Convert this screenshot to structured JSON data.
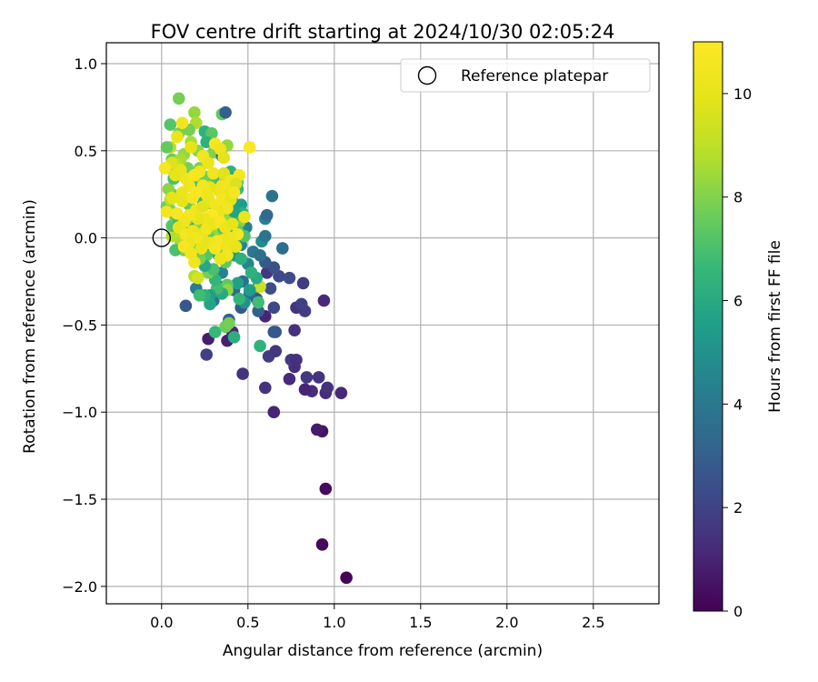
{
  "chart_data": {
    "type": "scatter",
    "title": "FOV centre drift starting at 2024/10/30 02:05:24",
    "xlabel": "Angular distance from reference (arcmin)",
    "ylabel": "Rotation from reference (arcmin)",
    "xlim": [
      -0.32,
      2.88
    ],
    "ylim": [
      -2.1,
      1.12
    ],
    "xticks": [
      0.0,
      0.5,
      1.0,
      1.5,
      2.0,
      2.5
    ],
    "xtick_labels": [
      "0.0",
      "0.5",
      "1.0",
      "1.5",
      "2.0",
      "2.5"
    ],
    "yticks": [
      -2.0,
      -1.5,
      -1.0,
      -0.5,
      0.0,
      0.5,
      1.0
    ],
    "ytick_labels": [
      "−2.0",
      "−1.5",
      "−1.0",
      "−0.5",
      "0.0",
      "0.5",
      "1.0"
    ],
    "grid": true,
    "legend": {
      "placement": "top-right",
      "entries": [
        "Reference platepar"
      ]
    },
    "reference_point": {
      "name": "Reference platepar",
      "x": 0.0,
      "y": 0.0,
      "marker": "open-circle"
    },
    "colorbar": {
      "label": "Hours from first FF file",
      "range": [
        0,
        11
      ],
      "ticks": [
        0,
        2,
        4,
        6,
        8,
        10
      ],
      "tick_labels": [
        "0",
        "2",
        "4",
        "6",
        "8",
        "10"
      ],
      "colormap": "viridis"
    },
    "points": [
      [
        1.07,
        -1.95,
        0.1
      ],
      [
        0.93,
        -1.76,
        0.2
      ],
      [
        0.95,
        -1.44,
        0.3
      ],
      [
        0.93,
        -1.11,
        0.5
      ],
      [
        0.9,
        -1.1,
        0.7
      ],
      [
        0.65,
        -1.0,
        1.0
      ],
      [
        1.04,
        -0.89,
        1.1
      ],
      [
        0.95,
        -0.89,
        1.2
      ],
      [
        0.87,
        -0.88,
        1.3
      ],
      [
        0.83,
        -0.87,
        1.0
      ],
      [
        0.96,
        -0.86,
        1.4
      ],
      [
        0.6,
        -0.86,
        1.5
      ],
      [
        0.77,
        -0.74,
        1.3
      ],
      [
        0.84,
        -0.8,
        1.6
      ],
      [
        0.91,
        -0.8,
        1.5
      ],
      [
        0.74,
        -0.81,
        1.2
      ],
      [
        0.75,
        -0.7,
        1.7
      ],
      [
        0.78,
        -0.7,
        1.4
      ],
      [
        0.62,
        -0.68,
        1.8
      ],
      [
        0.66,
        -0.65,
        1.6
      ],
      [
        0.47,
        -0.78,
        1.5
      ],
      [
        0.26,
        -0.67,
        1.9
      ],
      [
        0.27,
        -0.58,
        0.8
      ],
      [
        0.38,
        -0.59,
        0.9
      ],
      [
        0.41,
        -0.54,
        1.1
      ],
      [
        0.77,
        -0.53,
        1.4
      ],
      [
        0.65,
        -0.54,
        2.5
      ],
      [
        0.66,
        -0.54,
        2.7
      ],
      [
        0.6,
        -0.45,
        1.0
      ],
      [
        0.83,
        -0.42,
        1.8
      ],
      [
        0.94,
        -0.36,
        1.2
      ],
      [
        0.78,
        -0.4,
        1.5
      ],
      [
        0.81,
        -0.38,
        1.9
      ],
      [
        0.65,
        -0.4,
        2.2
      ],
      [
        0.82,
        -0.26,
        1.8
      ],
      [
        0.74,
        -0.23,
        2.3
      ],
      [
        0.68,
        -0.22,
        2.2
      ],
      [
        0.61,
        -0.2,
        1.6
      ],
      [
        0.65,
        -0.17,
        2.5
      ],
      [
        0.6,
        -0.14,
        2.8
      ],
      [
        0.63,
        -0.29,
        2.4
      ],
      [
        0.55,
        -0.35,
        2.6
      ],
      [
        0.56,
        -0.42,
        3.0
      ],
      [
        0.51,
        -0.32,
        3.2
      ],
      [
        0.46,
        -0.4,
        2.8
      ],
      [
        0.39,
        -0.47,
        3.0
      ],
      [
        0.42,
        -0.3,
        3.4
      ],
      [
        0.47,
        -0.25,
        3.6
      ],
      [
        0.3,
        -0.36,
        3.8
      ],
      [
        0.36,
        -0.28,
        4.0
      ],
      [
        0.14,
        -0.39,
        2.7
      ],
      [
        0.2,
        -0.29,
        4.2
      ],
      [
        0.35,
        -0.2,
        4.4
      ],
      [
        0.5,
        -0.15,
        4.6
      ],
      [
        0.53,
        -0.08,
        4.0
      ],
      [
        0.58,
        -0.02,
        4.8
      ],
      [
        0.57,
        -0.1,
        3.6
      ],
      [
        0.7,
        -0.06,
        3.5
      ],
      [
        0.6,
        0.01,
        3.8
      ],
      [
        0.6,
        0.11,
        4.4
      ],
      [
        0.61,
        0.13,
        3.4
      ],
      [
        0.64,
        0.24,
        3.8
      ],
      [
        0.57,
        -0.62,
        6.4
      ],
      [
        0.42,
        -0.57,
        6.2
      ],
      [
        0.31,
        -0.54,
        6.6
      ],
      [
        0.37,
        -0.51,
        7.6
      ],
      [
        0.39,
        -0.49,
        7.8
      ],
      [
        0.48,
        -0.37,
        5.0
      ],
      [
        0.56,
        -0.37,
        6.8
      ],
      [
        0.56,
        -0.28,
        5.0
      ],
      [
        0.57,
        -0.28,
        9.3
      ],
      [
        0.55,
        -0.23,
        6.0
      ],
      [
        0.52,
        -0.2,
        6.3
      ],
      [
        0.51,
        -0.3,
        5.5
      ],
      [
        0.45,
        -0.35,
        6.5
      ],
      [
        0.44,
        -0.26,
        5.6
      ],
      [
        0.38,
        -0.27,
        7.4
      ],
      [
        0.38,
        -0.3,
        8.2
      ],
      [
        0.35,
        -0.32,
        6.0
      ],
      [
        0.32,
        -0.29,
        6.9
      ],
      [
        0.31,
        -0.24,
        6.5
      ],
      [
        0.28,
        -0.33,
        5.5
      ],
      [
        0.28,
        -0.38,
        5.8
      ],
      [
        0.25,
        -0.33,
        6.3
      ],
      [
        0.22,
        -0.33,
        6.8
      ],
      [
        0.19,
        -0.22,
        8.8
      ],
      [
        0.27,
        -0.2,
        7.8
      ],
      [
        0.3,
        -0.18,
        7.0
      ],
      [
        0.33,
        -0.1,
        6.1
      ],
      [
        0.37,
        -0.14,
        7.4
      ],
      [
        0.42,
        -0.1,
        5.4
      ],
      [
        0.46,
        -0.12,
        6.3
      ],
      [
        0.46,
        -0.04,
        4.5
      ],
      [
        0.42,
        -0.02,
        5.7
      ],
      [
        0.38,
        0.0,
        4.9
      ],
      [
        0.36,
        -0.03,
        6.2
      ],
      [
        0.33,
        -0.05,
        7.2
      ],
      [
        0.3,
        -0.07,
        6.3
      ],
      [
        0.26,
        -0.1,
        7.2
      ],
      [
        0.25,
        -0.16,
        5.9
      ],
      [
        0.22,
        -0.12,
        7.8
      ],
      [
        0.2,
        -0.06,
        6.6
      ],
      [
        0.17,
        -0.04,
        7.6
      ],
      [
        0.13,
        -0.07,
        7.9
      ],
      [
        0.11,
        -0.02,
        8.6
      ],
      [
        0.08,
        -0.07,
        7.0
      ],
      [
        0.06,
        0.01,
        8.8
      ],
      [
        0.06,
        0.07,
        7.2
      ],
      [
        0.08,
        0.12,
        7.6
      ],
      [
        0.05,
        0.16,
        8.1
      ],
      [
        0.03,
        0.18,
        7.7
      ],
      [
        0.05,
        0.22,
        8.7
      ],
      [
        0.06,
        0.25,
        7.4
      ],
      [
        0.04,
        0.28,
        8.2
      ],
      [
        0.07,
        0.34,
        7.0
      ],
      [
        0.05,
        0.4,
        8.4
      ],
      [
        0.06,
        0.45,
        7.7
      ],
      [
        0.05,
        0.52,
        8.9
      ],
      [
        0.03,
        0.52,
        7.5
      ],
      [
        0.1,
        0.6,
        7.9
      ],
      [
        0.05,
        0.65,
        7.2
      ],
      [
        0.1,
        0.8,
        7.8
      ],
      [
        0.19,
        0.72,
        8.3
      ],
      [
        0.2,
        0.66,
        8.7
      ],
      [
        0.35,
        0.71,
        7.5
      ],
      [
        0.37,
        0.72,
        3.0
      ],
      [
        0.25,
        0.61,
        6.4
      ],
      [
        0.29,
        0.6,
        7.3
      ],
      [
        0.26,
        0.55,
        6.3
      ],
      [
        0.17,
        0.55,
        8.6
      ],
      [
        0.16,
        0.62,
        7.8
      ],
      [
        0.21,
        0.5,
        8.2
      ],
      [
        0.3,
        0.49,
        8.0
      ],
      [
        0.38,
        0.53,
        8.3
      ],
      [
        0.35,
        0.47,
        3.3
      ],
      [
        0.4,
        0.38,
        6.3
      ],
      [
        0.41,
        0.34,
        5.5
      ],
      [
        0.37,
        0.32,
        7.0
      ],
      [
        0.44,
        0.32,
        7.3
      ],
      [
        0.44,
        0.28,
        6.6
      ],
      [
        0.41,
        0.21,
        6.9
      ],
      [
        0.46,
        0.19,
        5.5
      ],
      [
        0.47,
        0.14,
        6.4
      ],
      [
        0.49,
        0.06,
        4.4
      ],
      [
        0.48,
        0.01,
        7.1
      ],
      [
        0.45,
        0.09,
        8.0
      ],
      [
        0.44,
        0.04,
        7.5
      ],
      [
        0.41,
        0.11,
        6.8
      ],
      [
        0.38,
        0.13,
        8.4
      ],
      [
        0.35,
        0.16,
        7.4
      ],
      [
        0.32,
        0.14,
        6.5
      ],
      [
        0.28,
        0.2,
        7.8
      ],
      [
        0.25,
        0.26,
        8.0
      ],
      [
        0.21,
        0.33,
        8.5
      ],
      [
        0.17,
        0.36,
        8.8
      ],
      [
        0.15,
        0.4,
        7.8
      ],
      [
        0.13,
        0.48,
        8.3
      ],
      [
        0.11,
        0.45,
        8.6
      ],
      [
        0.09,
        0.42,
        9.0
      ],
      [
        0.19,
        0.29,
        6.9
      ],
      [
        0.24,
        0.21,
        6.8
      ],
      [
        0.16,
        0.19,
        7.5
      ],
      [
        0.16,
        0.06,
        6.2
      ],
      [
        0.1,
        0.1,
        6.8
      ],
      [
        0.15,
        0.11,
        8.2
      ],
      [
        0.12,
        0.02,
        8.9
      ],
      [
        0.22,
        0.05,
        8.1
      ],
      [
        0.26,
        0.09,
        7.9
      ],
      [
        0.3,
        0.06,
        7.3
      ],
      [
        0.32,
        0.02,
        8.3
      ],
      [
        0.36,
        0.05,
        7.1
      ],
      [
        0.39,
        0.06,
        6.7
      ],
      [
        0.42,
        0.15,
        5.7
      ],
      [
        0.31,
        0.11,
        8.5
      ],
      [
        0.27,
        0.01,
        7.6
      ],
      [
        0.21,
        -0.04,
        8.0
      ],
      [
        0.35,
        -0.07,
        8.0
      ],
      [
        0.3,
        0.34,
        7.0
      ],
      [
        0.26,
        0.35,
        7.7
      ],
      [
        0.22,
        0.4,
        8.0
      ],
      [
        0.12,
        0.66,
        10.4
      ],
      [
        0.09,
        0.58,
        10.2
      ],
      [
        0.17,
        0.52,
        10.0
      ],
      [
        0.24,
        0.47,
        10.5
      ],
      [
        0.31,
        0.54,
        10.7
      ],
      [
        0.34,
        0.51,
        10.3
      ],
      [
        0.51,
        0.52,
        10.9
      ],
      [
        0.36,
        0.46,
        9.9
      ],
      [
        0.27,
        0.43,
        10.2
      ],
      [
        0.22,
        0.38,
        10.4
      ],
      [
        0.11,
        0.39,
        10.1
      ],
      [
        0.06,
        0.43,
        9.7
      ],
      [
        0.02,
        0.4,
        10.6
      ],
      [
        0.08,
        0.36,
        10.0
      ],
      [
        0.14,
        0.34,
        10.3
      ],
      [
        0.19,
        0.36,
        10.8
      ],
      [
        0.3,
        0.37,
        10.4
      ],
      [
        0.36,
        0.37,
        9.8
      ],
      [
        0.4,
        0.33,
        10.5
      ],
      [
        0.45,
        0.36,
        10.7
      ],
      [
        0.43,
        0.31,
        9.6
      ],
      [
        0.37,
        0.27,
        10.1
      ],
      [
        0.33,
        0.27,
        10.3
      ],
      [
        0.28,
        0.29,
        10.0
      ],
      [
        0.24,
        0.3,
        10.6
      ],
      [
        0.16,
        0.3,
        10.4
      ],
      [
        0.12,
        0.26,
        10.2
      ],
      [
        0.06,
        0.23,
        9.9
      ],
      [
        0.03,
        0.15,
        10.5
      ],
      [
        0.09,
        0.14,
        10.8
      ],
      [
        0.12,
        0.21,
        10.0
      ],
      [
        0.18,
        0.23,
        10.6
      ],
      [
        0.2,
        0.16,
        10.3
      ],
      [
        0.24,
        0.18,
        9.8
      ],
      [
        0.27,
        0.23,
        10.1
      ],
      [
        0.31,
        0.19,
        10.4
      ],
      [
        0.35,
        0.22,
        10.7
      ],
      [
        0.4,
        0.22,
        10.0
      ],
      [
        0.38,
        0.17,
        10.5
      ],
      [
        0.33,
        0.14,
        10.2
      ],
      [
        0.29,
        0.13,
        10.9
      ],
      [
        0.25,
        0.11,
        10.3
      ],
      [
        0.21,
        0.11,
        10.0
      ],
      [
        0.16,
        0.13,
        10.6
      ],
      [
        0.13,
        0.09,
        10.4
      ],
      [
        0.1,
        0.06,
        10.1
      ],
      [
        0.14,
        0.02,
        10.7
      ],
      [
        0.18,
        0.04,
        10.3
      ],
      [
        0.22,
        0.02,
        10.0
      ],
      [
        0.26,
        0.05,
        10.5
      ],
      [
        0.3,
        0.08,
        10.2
      ],
      [
        0.34,
        0.09,
        10.8
      ],
      [
        0.37,
        0.06,
        10.3
      ],
      [
        0.41,
        0.08,
        10.0
      ],
      [
        0.44,
        0.02,
        10.6
      ],
      [
        0.48,
        0.12,
        10.2
      ],
      [
        0.4,
        0.0,
        10.4
      ],
      [
        0.36,
        -0.01,
        10.1
      ],
      [
        0.32,
        -0.02,
        10.7
      ],
      [
        0.28,
        -0.03,
        10.3
      ],
      [
        0.24,
        -0.01,
        10.0
      ],
      [
        0.2,
        0.0,
        10.5
      ],
      [
        0.16,
        -0.03,
        10.2
      ],
      [
        0.13,
        -0.05,
        10.8
      ],
      [
        0.17,
        -0.09,
        10.4
      ],
      [
        0.23,
        -0.06,
        10.1
      ],
      [
        0.31,
        -0.06,
        10.6
      ],
      [
        0.38,
        -0.05,
        10.3
      ],
      [
        0.43,
        -0.05,
        10.0
      ],
      [
        0.38,
        -0.1,
        10.5
      ],
      [
        0.34,
        -0.12,
        10.2
      ],
      [
        0.21,
        -0.23,
        9.5
      ],
      [
        0.19,
        -0.14,
        10.4
      ],
      [
        0.42,
        0.26,
        10.6
      ],
      [
        0.26,
        0.25,
        10.3
      ],
      [
        0.2,
        0.26,
        10.8
      ],
      [
        0.35,
        0.3,
        10.4
      ]
    ]
  }
}
